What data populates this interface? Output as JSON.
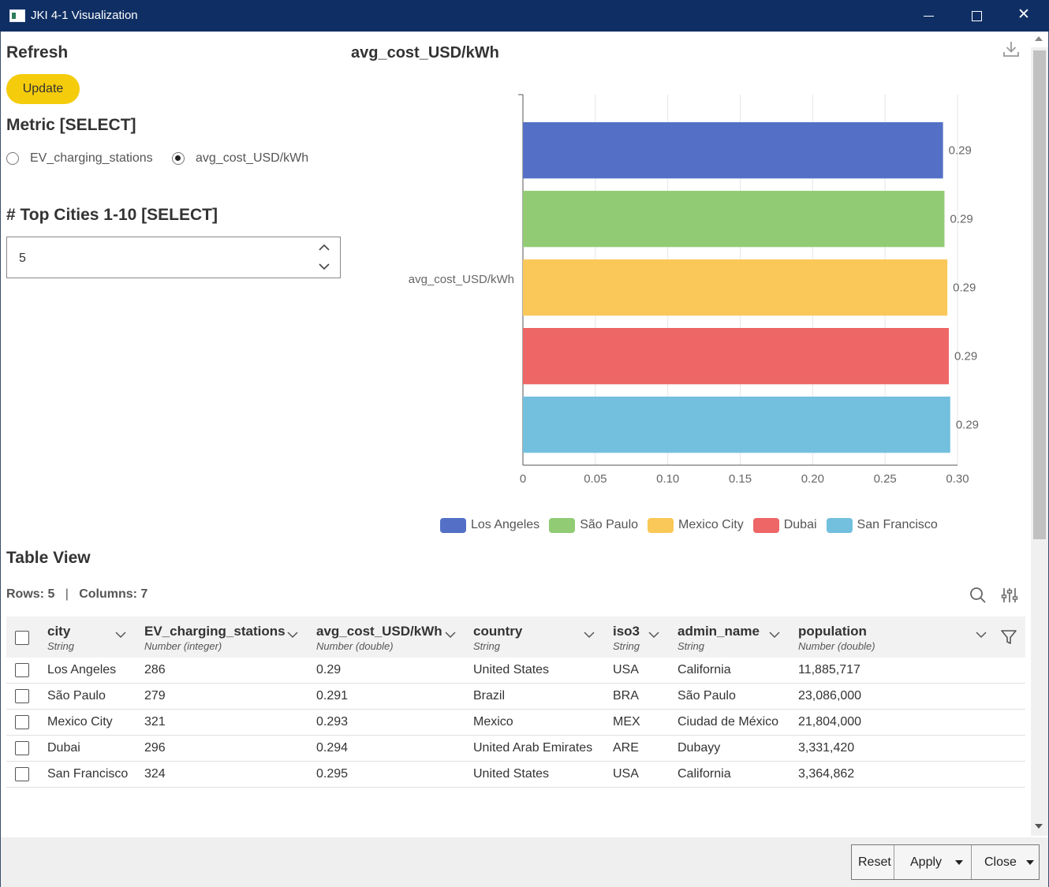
{
  "window": {
    "title": "JKI 4-1 Visualization",
    "min_glyph": "—",
    "max_glyph": "☐",
    "close_glyph": "✕"
  },
  "controls": {
    "refresh_label": "Refresh",
    "update_label": "Update",
    "metric_label": "Metric [SELECT]",
    "metric_options": [
      {
        "label": "EV_charging_stations",
        "checked": false
      },
      {
        "label": "avg_cost_USD/kWh",
        "checked": true
      }
    ],
    "top_cities_label": "# Top Cities 1-10 [SELECT]",
    "top_cities_value": "5"
  },
  "chart_data": {
    "type": "bar",
    "orientation": "horizontal",
    "title": "avg_cost_USD/kWh",
    "ylabel": "avg_cost_USD/kWh",
    "xlabel": "",
    "categories": [
      "Los Angeles",
      "São Paulo",
      "Mexico City",
      "Dubai",
      "San Francisco"
    ],
    "values": [
      0.29,
      0.291,
      0.293,
      0.294,
      0.295
    ],
    "data_labels": [
      "0.29",
      "0.29",
      "0.29",
      "0.29",
      "0.29"
    ],
    "colors": [
      "#5470c6",
      "#91cc75",
      "#fac858",
      "#ee6666",
      "#73c0de"
    ],
    "xlim": [
      0,
      0.3
    ],
    "xticks": [
      "0",
      "0.05",
      "0.10",
      "0.15",
      "0.20",
      "0.25",
      "0.30"
    ],
    "grid": true,
    "legend_position": "bottom",
    "legend": [
      "Los Angeles",
      "São Paulo",
      "Mexico City",
      "Dubai",
      "San Francisco"
    ]
  },
  "table": {
    "heading": "Table View",
    "rows_label": "Rows: 5",
    "sep": "|",
    "columns_label": "Columns: 7",
    "columns": [
      {
        "name": "city",
        "type": "String"
      },
      {
        "name": "EV_charging_stations",
        "type": "Number (integer)"
      },
      {
        "name": "avg_cost_USD/kWh",
        "type": "Number (double)"
      },
      {
        "name": "country",
        "type": "String"
      },
      {
        "name": "iso3",
        "type": "String"
      },
      {
        "name": "admin_name",
        "type": "String"
      },
      {
        "name": "population",
        "type": "Number (double)"
      }
    ],
    "rows": [
      [
        "Los Angeles",
        "286",
        "0.29",
        "United States",
        "USA",
        "California",
        "11,885,717"
      ],
      [
        "São Paulo",
        "279",
        "0.291",
        "Brazil",
        "BRA",
        "São Paulo",
        "23,086,000"
      ],
      [
        "Mexico City",
        "321",
        "0.293",
        "Mexico",
        "MEX",
        "Ciudad de México",
        "21,804,000"
      ],
      [
        "Dubai",
        "296",
        "0.294",
        "United Arab Emirates",
        "ARE",
        "Dubayy",
        "3,331,420"
      ],
      [
        "San Francisco",
        "324",
        "0.295",
        "United States",
        "USA",
        "California",
        "3,364,862"
      ]
    ]
  },
  "footer": {
    "reset_label": "Reset",
    "apply_label": "Apply",
    "close_label": "Close"
  }
}
